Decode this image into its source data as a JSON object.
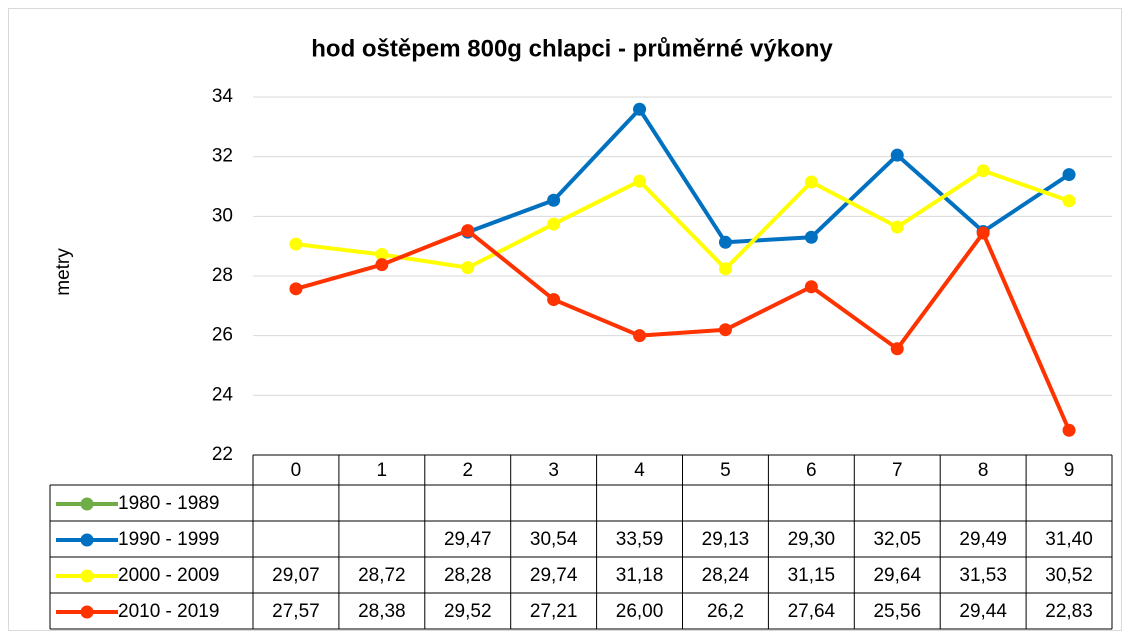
{
  "chart_data": {
    "type": "line",
    "title": "hod oštěpem 800g chlapci - průměrné výkony",
    "y_label": "metry",
    "categories": [
      "0",
      "1",
      "2",
      "3",
      "4",
      "5",
      "6",
      "7",
      "8",
      "9"
    ],
    "ylim": [
      22,
      34
    ],
    "yticks": [
      22,
      24,
      26,
      28,
      30,
      32,
      34
    ],
    "grid": true,
    "series": [
      {
        "name": "1980 - 1989",
        "color": "#70ad47",
        "values": [
          null,
          null,
          null,
          null,
          null,
          null,
          null,
          null,
          null,
          null
        ],
        "value_labels": [
          null,
          null,
          null,
          null,
          null,
          null,
          null,
          null,
          null,
          null
        ]
      },
      {
        "name": "1990 - 1999",
        "color": "#0070c0",
        "values": [
          null,
          null,
          29.47,
          30.54,
          33.59,
          29.13,
          29.3,
          32.05,
          29.49,
          31.4
        ],
        "value_labels": [
          null,
          null,
          "29,47",
          "30,54",
          "33,59",
          "29,13",
          "29,30",
          "32,05",
          "29,49",
          "31,40"
        ]
      },
      {
        "name": "2000 - 2009",
        "color": "#ffff00",
        "values": [
          29.07,
          28.72,
          28.28,
          29.74,
          31.18,
          28.24,
          31.15,
          29.64,
          31.53,
          30.52
        ],
        "value_labels": [
          "29,07",
          "28,72",
          "28,28",
          "29,74",
          "31,18",
          "28,24",
          "31,15",
          "29,64",
          "31,53",
          "30,52"
        ]
      },
      {
        "name": "2010 - 2019",
        "color": "#ff3300",
        "values": [
          27.57,
          28.38,
          29.52,
          27.21,
          26.0,
          26.2,
          27.64,
          25.56,
          29.44,
          22.83
        ],
        "value_labels": [
          "27,57",
          "28,38",
          "29,52",
          "27,21",
          "26,00",
          "26,2",
          "27,64",
          "25,56",
          "29,44",
          "22,83"
        ]
      }
    ]
  }
}
